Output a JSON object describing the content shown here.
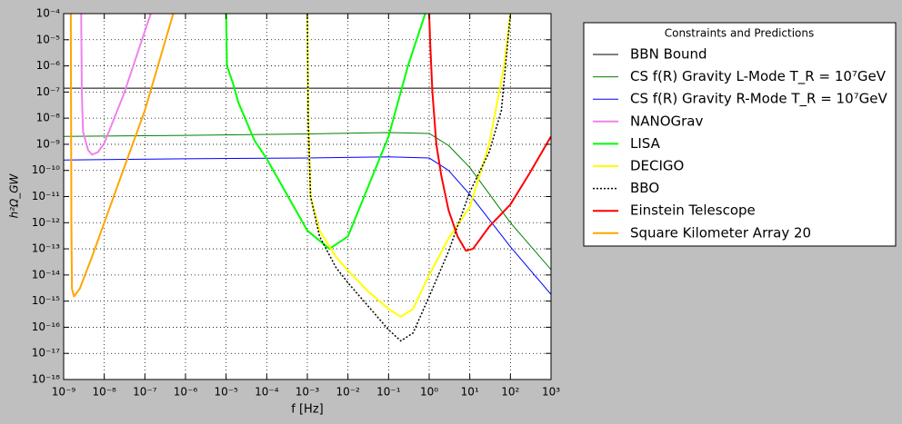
{
  "chart_data": {
    "type": "line",
    "xlabel": "f [Hz]",
    "ylabel": "h²Ω_GW",
    "log_x": true,
    "log_y": true,
    "grid": true,
    "legend_title": "Constraints and Predictions",
    "legend_position": "outside-right",
    "xlim": [
      1e-09,
      1000
    ],
    "ylim": [
      1e-18,
      0.0001
    ],
    "xticks": [
      {
        "value": 1e-09,
        "label": "10⁻⁹"
      },
      {
        "value": 1e-08,
        "label": "10⁻⁸"
      },
      {
        "value": 1e-07,
        "label": "10⁻⁷"
      },
      {
        "value": 1e-06,
        "label": "10⁻⁶"
      },
      {
        "value": 1e-05,
        "label": "10⁻⁵"
      },
      {
        "value": 0.0001,
        "label": "10⁻⁴"
      },
      {
        "value": 0.001,
        "label": "10⁻³"
      },
      {
        "value": 0.01,
        "label": "10⁻²"
      },
      {
        "value": 0.1,
        "label": "10⁻¹"
      },
      {
        "value": 1,
        "label": "10⁰"
      },
      {
        "value": 10,
        "label": "10¹"
      },
      {
        "value": 100,
        "label": "10²"
      },
      {
        "value": 1000,
        "label": "10³"
      }
    ],
    "yticks": [
      {
        "value": 1e-18,
        "label": "10⁻¹⁸"
      },
      {
        "value": 1e-17,
        "label": "10⁻¹⁷"
      },
      {
        "value": 1e-16,
        "label": "10⁻¹⁶"
      },
      {
        "value": 1e-15,
        "label": "10⁻¹⁵"
      },
      {
        "value": 1e-14,
        "label": "10⁻¹⁴"
      },
      {
        "value": 1e-13,
        "label": "10⁻¹³"
      },
      {
        "value": 1e-12,
        "label": "10⁻¹²"
      },
      {
        "value": 1e-11,
        "label": "10⁻¹¹"
      },
      {
        "value": 1e-10,
        "label": "10⁻¹⁰"
      },
      {
        "value": 1e-09,
        "label": "10⁻⁹"
      },
      {
        "value": 1e-08,
        "label": "10⁻⁸"
      },
      {
        "value": 1e-07,
        "label": "10⁻⁷"
      },
      {
        "value": 1e-06,
        "label": "10⁻⁶"
      },
      {
        "value": 1e-05,
        "label": "10⁻⁵"
      },
      {
        "value": 0.0001,
        "label": "10⁻⁴"
      }
    ],
    "series": [
      {
        "name": "BBN Bound",
        "color": "#000000",
        "width": 1,
        "x": [
          1e-09,
          1000
        ],
        "values": [
          1.4e-07,
          1.4e-07
        ]
      },
      {
        "name": "CS f(R) Gravity L-Mode T_R = 10⁷GeV",
        "color": "#008000",
        "width": 1,
        "x": [
          1e-09,
          1e-06,
          0.001,
          0.1,
          1,
          3,
          10,
          100,
          1000
        ],
        "values": [
          2e-09,
          2.2e-09,
          2.5e-09,
          2.8e-09,
          2.6e-09,
          9e-10,
          1.3e-10,
          1e-12,
          1.6e-14
        ]
      },
      {
        "name": "CS f(R) Gravity R-Mode T_R = 10⁷GeV",
        "color": "#0000ff",
        "width": 1,
        "x": [
          1e-09,
          1e-06,
          0.001,
          0.1,
          1,
          3,
          10,
          100,
          1000
        ],
        "values": [
          2.5e-10,
          2.8e-10,
          3e-10,
          3.3e-10,
          3e-10,
          1e-10,
          1.2e-11,
          1.2e-13,
          1.8e-15
        ]
      },
      {
        "name": "NANOGrav",
        "color": "#ee82ee",
        "width": 2,
        "x": [
          2.7e-09,
          2.8e-09,
          3e-09,
          4e-09,
          5e-09,
          7e-09,
          1e-08,
          3e-08,
          6e-08,
          1.2e-07,
          1.4e-07
        ],
        "values": [
          0.0001,
          1e-07,
          3e-09,
          6e-10,
          4e-10,
          5e-10,
          1.1e-09,
          8e-08,
          2e-06,
          5e-05,
          0.0001
        ]
      },
      {
        "name": "LISA",
        "color": "#00ff00",
        "width": 2,
        "x": [
          1e-05,
          1.05e-05,
          1.5e-05,
          2e-05,
          5e-05,
          0.0001,
          0.001,
          0.0035,
          0.01,
          0.03,
          0.1,
          0.3,
          0.8
        ],
        "values": [
          0.0001,
          1e-06,
          2e-07,
          4e-08,
          1.4e-09,
          2.8e-10,
          5e-13,
          1e-13,
          3e-13,
          2e-11,
          2e-09,
          1e-06,
          0.0001
        ]
      },
      {
        "name": "DECIGO",
        "color": "#ffff00",
        "width": 2,
        "x": [
          0.001,
          0.00105,
          0.0012,
          0.002,
          0.005,
          0.01,
          0.03,
          0.1,
          0.2,
          0.4,
          1,
          3,
          10,
          30,
          70,
          100
        ],
        "values": [
          0.0001,
          1e-08,
          1e-11,
          5e-13,
          5e-14,
          1.5e-14,
          2.5e-15,
          5e-16,
          2.5e-16,
          5e-16,
          1e-14,
          2.5e-13,
          4e-12,
          1e-09,
          1e-06,
          0.0001
        ]
      },
      {
        "name": "BBO",
        "color": "#000000",
        "width": 1.5,
        "dash": "2 2",
        "x": [
          0.001,
          0.00105,
          0.0012,
          0.002,
          0.005,
          0.01,
          0.03,
          0.1,
          0.2,
          0.4,
          1,
          3,
          10,
          30,
          60,
          100
        ],
        "values": [
          0.0001,
          1e-08,
          1e-11,
          3e-13,
          2e-14,
          5e-15,
          7e-16,
          8e-17,
          3e-17,
          6e-17,
          1.5e-15,
          8e-14,
          1.5e-11,
          5e-10,
          2e-08,
          0.0001
        ]
      },
      {
        "name": "Einstein Telescope",
        "color": "#ff0000",
        "width": 2,
        "x": [
          1,
          1.05,
          1.2,
          1.5,
          2,
          3,
          5,
          8,
          12,
          30,
          100,
          300,
          1000
        ],
        "values": [
          0.0001,
          1e-05,
          1e-07,
          1e-09,
          6e-11,
          3e-12,
          3e-13,
          8.5e-14,
          1e-13,
          7e-13,
          5e-12,
          8e-11,
          2e-09
        ]
      },
      {
        "name": "Square Kilometer Array 20",
        "color": "#ffa500",
        "width": 2,
        "x": [
          1.5e-09,
          1.55e-09,
          1.6e-09,
          1.8e-09,
          2.5e-09,
          5e-09,
          1e-08,
          1e-07,
          5e-07
        ],
        "values": [
          0.0001,
          1e-12,
          3e-15,
          1.5e-15,
          3e-15,
          5e-14,
          1e-12,
          2e-08,
          0.0001
        ]
      }
    ]
  }
}
